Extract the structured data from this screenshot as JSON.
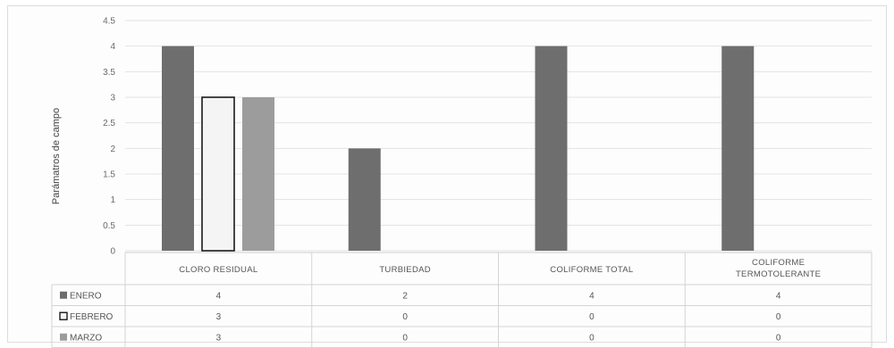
{
  "chart_data": {
    "type": "bar",
    "ylabel": "Parámatros de campo",
    "ylim": [
      0,
      4.5
    ],
    "yticks": [
      "0",
      "0.5",
      "1",
      "1.5",
      "2",
      "2.5",
      "3",
      "3.5",
      "4",
      "4.5"
    ],
    "categories": [
      "CLORO RESIDUAL",
      "TURBIEDAD",
      "COLIFORME TOTAL",
      "COLIFORME TERMOTOLERANTE"
    ],
    "series": [
      {
        "name": "ENERO",
        "values": [
          4,
          2,
          4,
          4
        ],
        "color": "#6e6e6e",
        "value_labels": [
          "4",
          "2",
          "4",
          "4"
        ]
      },
      {
        "name": "FEBRERO",
        "values": [
          3,
          0,
          0,
          0
        ],
        "color": "#f4f4f4",
        "value_labels": [
          "3",
          "0",
          "0",
          "0"
        ]
      },
      {
        "name": "MARZO",
        "values": [
          3,
          0,
          0,
          0
        ],
        "color": "#9c9c9c",
        "value_labels": [
          "3",
          "0",
          "0",
          "0"
        ]
      }
    ],
    "grid": true,
    "legend": "data-table"
  }
}
